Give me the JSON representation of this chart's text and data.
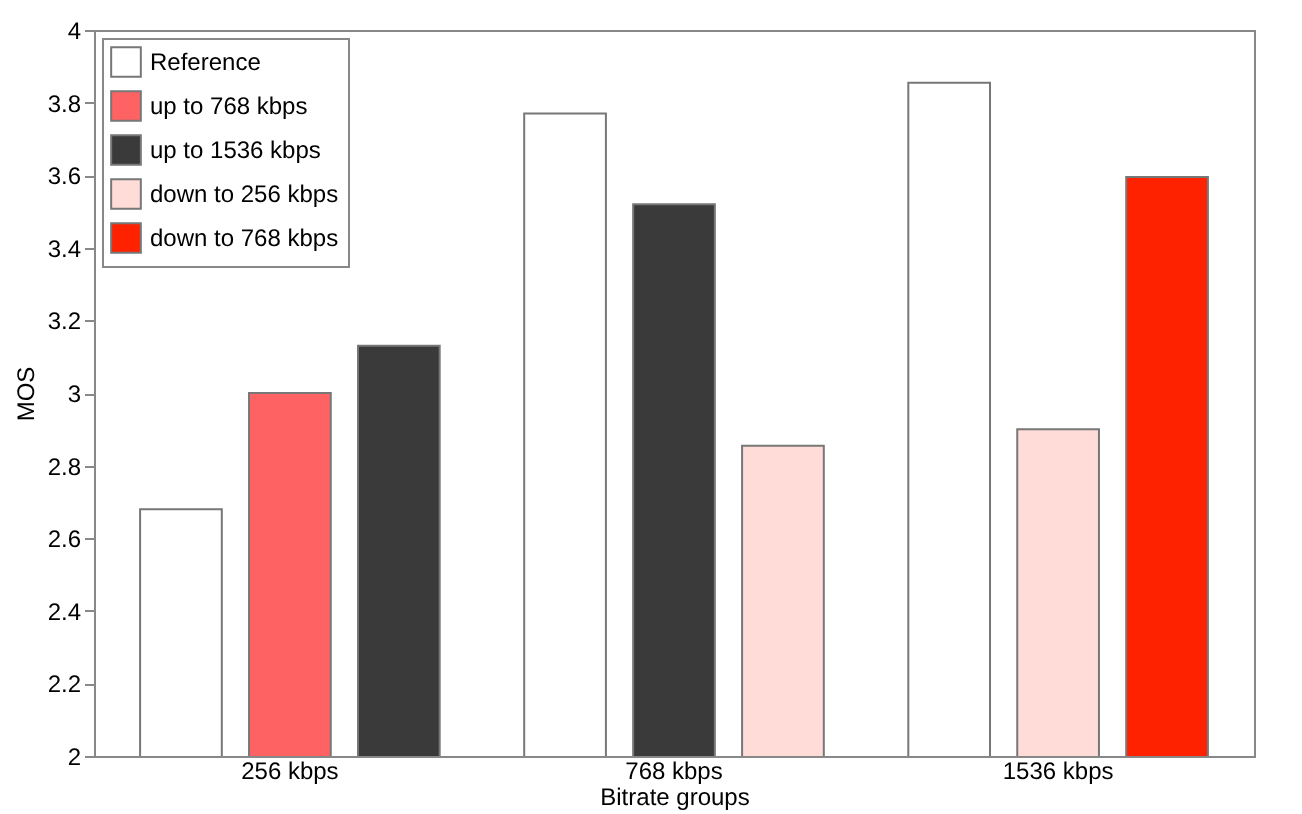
{
  "chart_data": {
    "type": "bar",
    "xlabel": "Bitrate groups",
    "ylabel": "MOS",
    "categories": [
      "256 kbps",
      "768 kbps",
      "1536 kbps"
    ],
    "series": [
      {
        "name": "Reference",
        "color": "#ffffff",
        "values": [
          2.68,
          3.77,
          3.855
        ]
      },
      {
        "name": "up to 768 kbps",
        "color": "#ff6262",
        "values": [
          3.0,
          null,
          null
        ]
      },
      {
        "name": "up to 1536 kbps",
        "color": "#3a3a3a",
        "values": [
          3.13,
          3.52,
          null
        ]
      },
      {
        "name": "down to 256 kbps",
        "color": "#ffdcd8",
        "values": [
          null,
          2.855,
          2.9
        ]
      },
      {
        "name": "down to 768 kbps",
        "color": "#ff2200",
        "values": [
          null,
          null,
          3.595
        ]
      }
    ],
    "ylim": [
      2,
      4
    ],
    "yticks": [
      2,
      2.2,
      2.4,
      2.6,
      2.8,
      3,
      3.2,
      3.4,
      3.6,
      3.8,
      4
    ],
    "grid": false,
    "legend": "top left"
  }
}
